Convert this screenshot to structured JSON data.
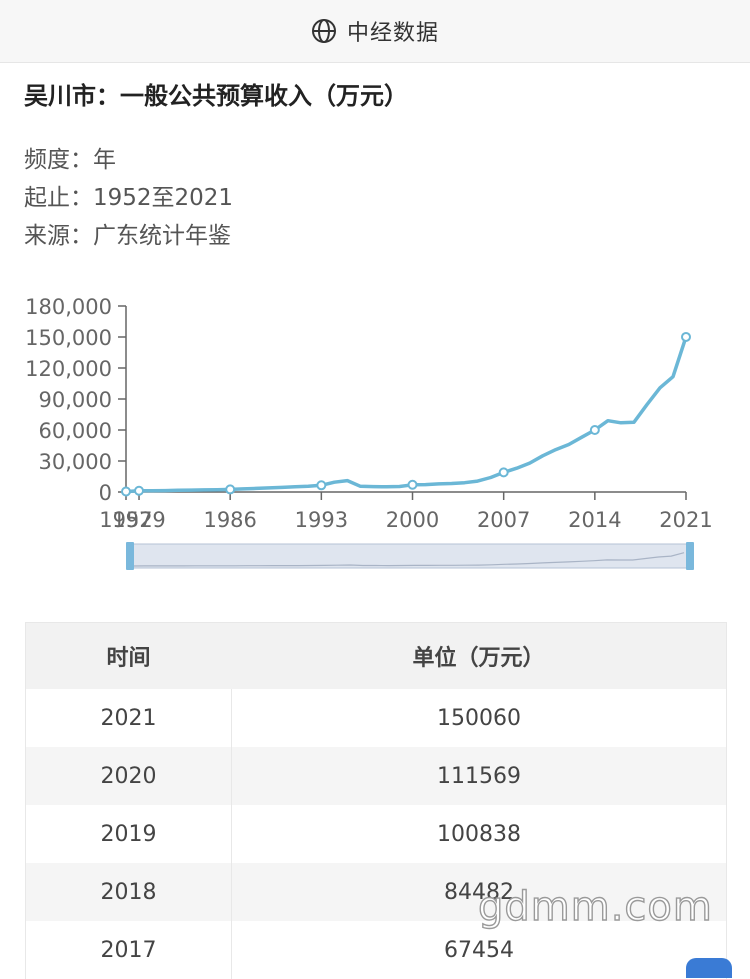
{
  "header": {
    "brand": "中经数据",
    "icon": "globe-icon"
  },
  "page": {
    "title": "吴川市：一般公共预算收入（万元）",
    "frequency_label": "频度：",
    "frequency": "年",
    "range_label": "起止：",
    "range": "1952至2021",
    "source_label": "来源：",
    "source": "广东统计年鉴"
  },
  "chart_data": {
    "type": "line",
    "title": "",
    "xlabel": "",
    "ylabel": "",
    "x_ticks": [
      "1952",
      "1979",
      "1986",
      "1993",
      "2000",
      "2007",
      "2014",
      "2021"
    ],
    "y_ticks": [
      "0",
      "30,000",
      "60,000",
      "90,000",
      "120,000",
      "150,000",
      "180,000"
    ],
    "ylim": [
      0,
      180000
    ],
    "grid": false,
    "legend": "none",
    "color": "#6bb7d6",
    "x": [
      "1952",
      "1979",
      "1980",
      "1981",
      "1982",
      "1983",
      "1984",
      "1985",
      "1986",
      "1987",
      "1988",
      "1989",
      "1990",
      "1991",
      "1992",
      "1993",
      "1994",
      "1995",
      "1996",
      "1997",
      "1998",
      "1999",
      "2000",
      "2001",
      "2002",
      "2003",
      "2004",
      "2005",
      "2006",
      "2007",
      "2008",
      "2009",
      "2010",
      "2011",
      "2012",
      "2013",
      "2014",
      "2015",
      "2016",
      "2017",
      "2018",
      "2019",
      "2020",
      "2021"
    ],
    "values": [
      500,
      1200,
      1300,
      1400,
      1600,
      1800,
      2000,
      2200,
      2500,
      3000,
      3500,
      4000,
      4500,
      5000,
      5500,
      6500,
      9500,
      11000,
      5500,
      5200,
      5000,
      5300,
      7000,
      7200,
      7800,
      8200,
      9000,
      10500,
      14000,
      19000,
      23000,
      28000,
      35000,
      41000,
      46000,
      53000,
      60000,
      69000,
      67000,
      67454,
      84482,
      100838,
      111569,
      150060
    ],
    "markers": [
      "1952",
      "1979",
      "1986",
      "1993",
      "2000",
      "2007",
      "2014",
      "2021"
    ]
  },
  "table": {
    "headers": [
      "时间",
      "单位（万元）"
    ],
    "rows": [
      {
        "year": "2021",
        "value": "150060"
      },
      {
        "year": "2020",
        "value": "111569"
      },
      {
        "year": "2019",
        "value": "100838"
      },
      {
        "year": "2018",
        "value": "84482"
      },
      {
        "year": "2017",
        "value": "67454"
      }
    ]
  },
  "watermark": "gdmm.com"
}
